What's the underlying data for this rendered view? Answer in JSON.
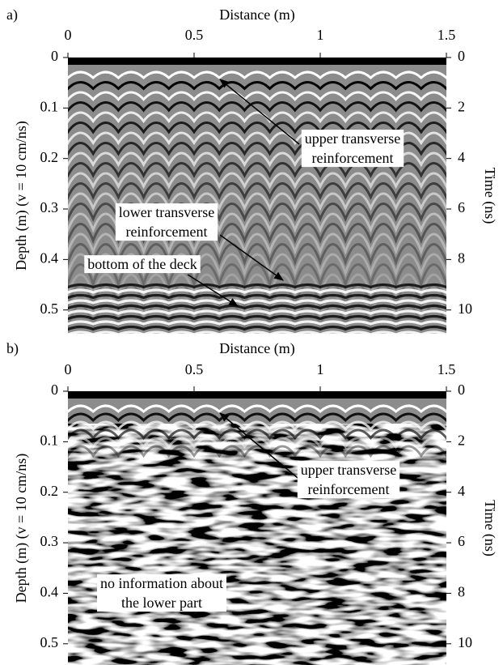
{
  "chart_data": [
    {
      "type": "radargram",
      "panel_label": "a)",
      "xlabel": "Distance (m)",
      "ylabel": "Depth (m) (v = 10 cm/ns)",
      "y2label": "Time (ns)",
      "xlim": [
        0,
        1.5
      ],
      "xticks": [
        0,
        0.5,
        1,
        1.5
      ],
      "ylim": [
        0,
        0.547
      ],
      "yticks": [
        0,
        0.1,
        0.2,
        0.3,
        0.4,
        0.5
      ],
      "y2lim": [
        0,
        10.94
      ],
      "y2ticks": [
        0,
        2,
        4,
        6,
        8,
        10
      ],
      "annotations": [
        {
          "text": [
            "upper transverse",
            "reinforcement"
          ]
        },
        {
          "text": [
            "lower transverse",
            "reinforcement"
          ]
        },
        {
          "text": [
            "bottom of the deck"
          ]
        }
      ]
    },
    {
      "type": "radargram",
      "panel_label": "b)",
      "xlabel": "Distance (m)",
      "ylabel": "Depth (m) (v = 10 cm/ns)",
      "y2label": "Time (ns)",
      "xlim": [
        0,
        1.5
      ],
      "xticks": [
        0,
        0.5,
        1,
        1.5
      ],
      "ylim": [
        0,
        0.542
      ],
      "yticks": [
        0,
        0.1,
        0.2,
        0.3,
        0.4,
        0.5
      ],
      "y2lim": [
        0,
        10.84
      ],
      "y2ticks": [
        0,
        2,
        4,
        6,
        8,
        10
      ],
      "noisy": true,
      "annotations": [
        {
          "text": [
            "upper transverse",
            "reinforcement"
          ]
        },
        {
          "text": [
            "no information about",
            "the lower part"
          ]
        }
      ]
    }
  ]
}
